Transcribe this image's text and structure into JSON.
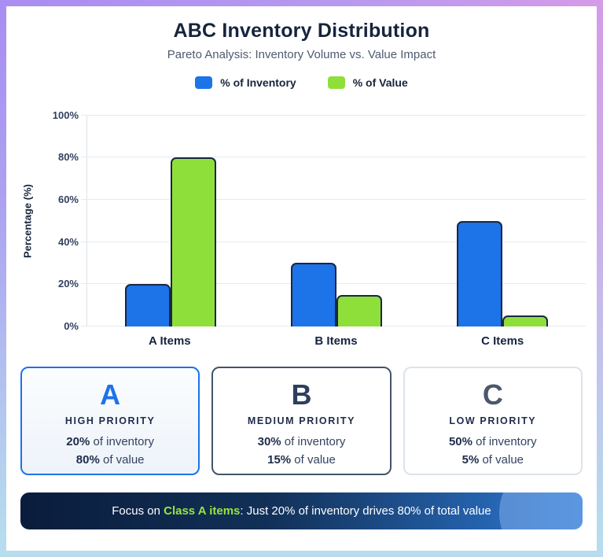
{
  "header": {
    "title": "ABC Inventory Distribution",
    "subtitle": "Pareto Analysis: Inventory Volume vs. Value Impact"
  },
  "legend": [
    {
      "label": "% of Inventory",
      "color": "#1d73e8"
    },
    {
      "label": "% of Value",
      "color": "#8fdf3b"
    }
  ],
  "chart_data": {
    "type": "bar",
    "categories": [
      "A Items",
      "B Items",
      "C Items"
    ],
    "series": [
      {
        "name": "% of Inventory",
        "color": "#1d73e8",
        "values": [
          20,
          30,
          50
        ]
      },
      {
        "name": "% of Value",
        "color": "#8fdf3b",
        "values": [
          80,
          15,
          5
        ]
      }
    ],
    "title": "ABC Inventory Distribution",
    "xlabel": "",
    "ylabel": "Percentage (%)",
    "yticks": [
      "0%",
      "20%",
      "40%",
      "60%",
      "80%",
      "100%"
    ],
    "ylim": [
      0,
      100
    ],
    "grid": true,
    "legend_position": "top",
    "bar_border_color": "#1a2742"
  },
  "cards": [
    {
      "letter": "A",
      "priority": "HIGH PRIORITY",
      "accent": "#1d73e8",
      "inventory_pct": "20%",
      "inventory_rest": " of inventory",
      "value_pct": "80%",
      "value_rest": " of value"
    },
    {
      "letter": "B",
      "priority": "MEDIUM PRIORITY",
      "accent": "#2d3e5e",
      "inventory_pct": "30%",
      "inventory_rest": " of inventory",
      "value_pct": "15%",
      "value_rest": " of value"
    },
    {
      "letter": "C",
      "priority": "LOW PRIORITY",
      "accent": "#4a586c",
      "inventory_pct": "50%",
      "inventory_rest": " of inventory",
      "value_pct": "5%",
      "value_rest": " of value"
    }
  ],
  "banner": {
    "prefix": "Focus on ",
    "highlight": "Class A items",
    "suffix": ": Just 20% of inventory drives 80% of total value",
    "highlight_color": "#97e43e"
  }
}
